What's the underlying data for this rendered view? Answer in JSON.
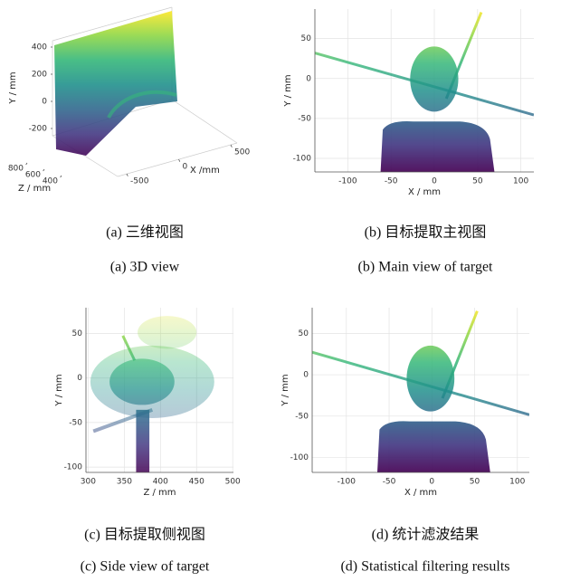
{
  "panels": [
    {
      "axes": {
        "type": "3d",
        "xlabel": "X /mm",
        "ylabel": "Y / mm",
        "zlabel": "Z / mm",
        "xticks": [
          -500,
          0,
          500
        ],
        "yticks": [
          -200,
          0,
          200,
          400
        ],
        "zticks": [
          400,
          600,
          800
        ]
      },
      "caption_cn": "(a)  三维视图",
      "caption_en": "(a) 3D view"
    },
    {
      "axes": {
        "type": "2d",
        "xlabel": "X / mm",
        "ylabel": "Y / mm",
        "xlim": [
          -138,
          115
        ],
        "ylim": [
          -117,
          87
        ],
        "xticks": [
          -100,
          -50,
          0,
          50,
          100
        ],
        "yticks": [
          -100,
          -50,
          0,
          50
        ]
      },
      "caption_cn": "(b)  目标提取主视图",
      "caption_en": "(b) Main view of target"
    },
    {
      "axes": {
        "type": "2d",
        "xlabel": "Z / mm",
        "ylabel": "Y / mm",
        "xlim": [
          297,
          501
        ],
        "ylim": [
          -106,
          79
        ],
        "xticks": [
          300,
          350,
          400,
          450,
          500
        ],
        "yticks": [
          -100,
          -50,
          0,
          50
        ]
      },
      "caption_cn": "(c)  目标提取侧视图",
      "caption_en": "(c) Side view of target"
    },
    {
      "axes": {
        "type": "2d",
        "xlabel": "X / mm",
        "ylabel": "Y / mm",
        "xlim": [
          -140,
          114
        ],
        "ylim": [
          -118,
          81
        ],
        "xticks": [
          -100,
          -50,
          0,
          50,
          100
        ],
        "yticks": [
          -100,
          -50,
          0,
          50
        ]
      },
      "caption_cn": "(d)  统计滤波结果",
      "caption_en": "(d) Statistical filtering results"
    }
  ]
}
